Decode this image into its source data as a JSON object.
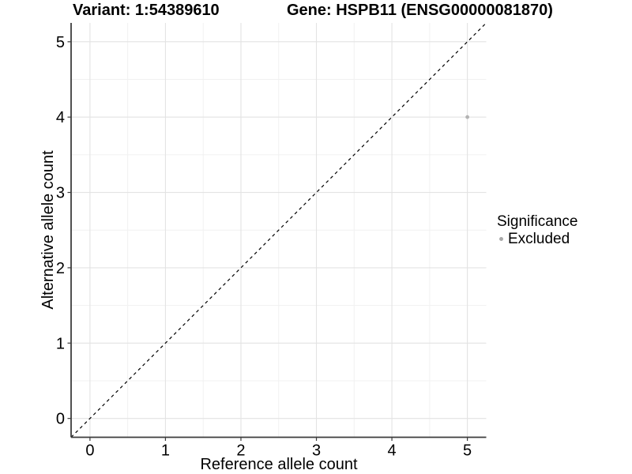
{
  "titles": {
    "variant": "Variant: 1:54389610",
    "gene": "Gene: HSPB11 (ENSG00000081870)"
  },
  "chart_data": {
    "type": "scatter",
    "title_left": "Variant: 1:54389610",
    "title_right": "Gene: HSPB11 (ENSG00000081870)",
    "xlabel": "Reference allele count",
    "ylabel": "Alternative allele count",
    "xlim": [
      -0.25,
      5.25
    ],
    "ylim": [
      -0.25,
      5.25
    ],
    "x_ticks": [
      0,
      1,
      2,
      3,
      4,
      5
    ],
    "y_ticks": [
      0,
      1,
      2,
      3,
      4,
      5
    ],
    "grid": "major and minor gridlines on white background",
    "series": [
      {
        "name": "Excluded",
        "color": "#b3b3b3",
        "points": [
          {
            "x": 5,
            "y": 4
          }
        ]
      }
    ],
    "reference_line": {
      "type": "identity y=x across full panel",
      "style": "dashed",
      "color": "#000000"
    },
    "legend": {
      "title": "Significance",
      "position": "right",
      "entries": [
        {
          "label": "Excluded",
          "color": "#a9a9a9"
        }
      ]
    },
    "colors": {
      "grid_major": "#e3e3e3",
      "grid_minor": "#f1f1f1",
      "axis_line": "#3c3c3c",
      "tick_mark": "#3c3c3c",
      "text": "#000000",
      "background": "#ffffff"
    }
  }
}
